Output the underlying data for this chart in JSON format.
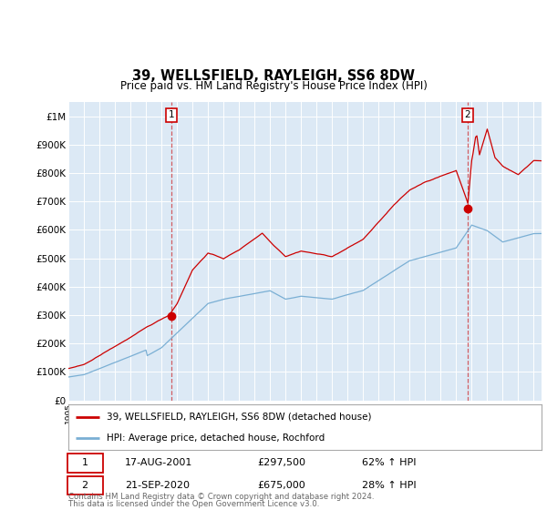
{
  "title": "39, WELLSFIELD, RAYLEIGH, SS6 8DW",
  "subtitle": "Price paid vs. HM Land Registry's House Price Index (HPI)",
  "hpi_label": "HPI: Average price, detached house, Rochford",
  "price_label": "39, WELLSFIELD, RAYLEIGH, SS6 8DW (detached house)",
  "annotation1_date": "17-AUG-2001",
  "annotation1_price": "£297,500",
  "annotation1_pct": "62% ↑ HPI",
  "annotation2_date": "21-SEP-2020",
  "annotation2_price": "£675,000",
  "annotation2_pct": "28% ↑ HPI",
  "footer1": "Contains HM Land Registry data © Crown copyright and database right 2024.",
  "footer2": "This data is licensed under the Open Government Licence v3.0.",
  "price_color": "#cc0000",
  "hpi_color": "#7aafd4",
  "background_color": "#ffffff",
  "plot_bg_color": "#dce9f5",
  "grid_color": "#ffffff",
  "ylim": [
    0,
    1050000
  ],
  "yticks": [
    0,
    100000,
    200000,
    300000,
    400000,
    500000,
    600000,
    700000,
    800000,
    900000,
    1000000
  ],
  "ytick_labels": [
    "£0",
    "£100K",
    "£200K",
    "£300K",
    "£400K",
    "£500K",
    "£600K",
    "£700K",
    "£800K",
    "£900K",
    "£1M"
  ],
  "xlim_start": 1995.25,
  "xlim_end": 2025.5,
  "sale1_x": 2001.63,
  "sale1_y": 297500,
  "sale2_x": 2020.72,
  "sale2_y": 675000
}
